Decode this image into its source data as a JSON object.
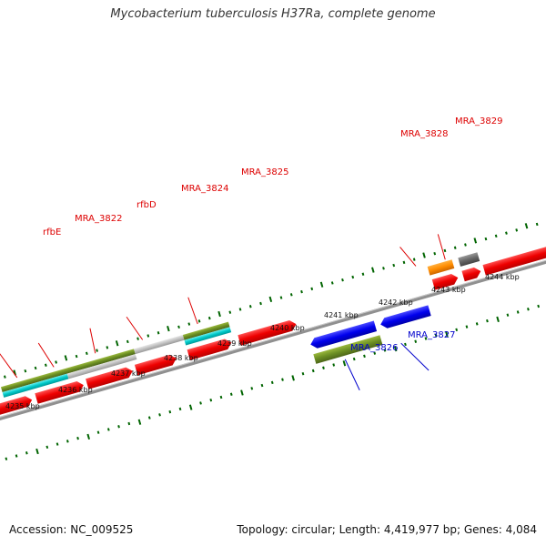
{
  "title": "Mycobacterium tuberculosis H37Ra, complete genome",
  "footer": {
    "accession": "Accession: NC_009525",
    "summary": "Topology: circular; Length: 4,419,977 bp; Genes: 4,084"
  },
  "colors": {
    "cds_forward": "#ff0000",
    "cds_reverse": "#0000ee",
    "cog_green": "#6b8e23",
    "cog_cyan": "#00c8c8",
    "cog_gray": "#c0c0c0",
    "cog_orange": "#ff8c00",
    "cog_dark": "#666666",
    "tick": "#006400",
    "backbone": "#888888",
    "label_forward": "#cc0000",
    "label_reverse": "#0000cc"
  },
  "scale_labels": [
    "4235 kbp",
    "4236 kbp",
    "4237 kbp",
    "4238 kbp",
    "4239 kbp",
    "4240 kbp",
    "4241 kbp",
    "4242 kbp",
    "4243 kbp",
    "4244 kbp"
  ],
  "forward_genes": [
    "rfbE",
    "MRA_3822",
    "rfbD",
    "MRA_3824",
    "MRA_3825",
    "MRA_3828",
    "MRA_3829"
  ],
  "reverse_genes": [
    "MRA_3826",
    "MRA_3827"
  ]
}
